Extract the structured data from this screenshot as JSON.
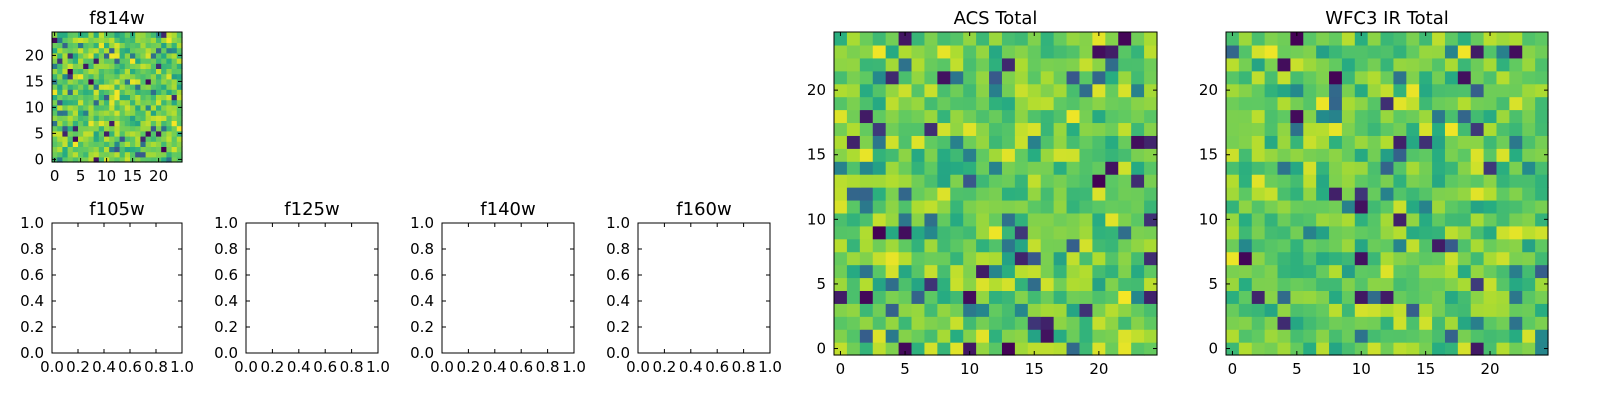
{
  "chart_data": [
    {
      "id": "f814w",
      "type": "heatmap",
      "title": "f814w",
      "nx": 25,
      "ny": 25,
      "xlim": [
        -0.5,
        24.5
      ],
      "ylim": [
        -0.5,
        24.5
      ],
      "xticks": [
        0,
        5,
        10,
        15,
        20
      ],
      "yticks": [
        0,
        5,
        10,
        15,
        20
      ],
      "seed": 11
    },
    {
      "id": "f105w",
      "type": "empty",
      "title": "f105w",
      "xlim": [
        0,
        1
      ],
      "ylim": [
        0,
        1
      ],
      "xticks": [
        0.0,
        0.2,
        0.4,
        0.6,
        0.8,
        1.0
      ],
      "xtick_labels": [
        "0.0",
        "0.2",
        "0.4",
        "0.6",
        "0.8",
        "1.0"
      ],
      "yticks": [
        0.0,
        0.2,
        0.4,
        0.6,
        0.8,
        1.0
      ],
      "ytick_labels": [
        "0.0",
        "0.2",
        "0.4",
        "0.6",
        "0.8",
        "1.0"
      ]
    },
    {
      "id": "f125w",
      "type": "empty",
      "title": "f125w",
      "xlim": [
        0,
        1
      ],
      "ylim": [
        0,
        1
      ],
      "xticks": [
        0.0,
        0.2,
        0.4,
        0.6,
        0.8,
        1.0
      ],
      "xtick_labels": [
        "0.0",
        "0.2",
        "0.4",
        "0.6",
        "0.8",
        "1.0"
      ],
      "yticks": [
        0.0,
        0.2,
        0.4,
        0.6,
        0.8,
        1.0
      ],
      "ytick_labels": [
        "0.0",
        "0.2",
        "0.4",
        "0.6",
        "0.8",
        "1.0"
      ]
    },
    {
      "id": "f140w",
      "type": "empty",
      "title": "f140w",
      "xlim": [
        0,
        1
      ],
      "ylim": [
        0,
        1
      ],
      "xticks": [
        0.0,
        0.2,
        0.4,
        0.6,
        0.8,
        1.0
      ],
      "xtick_labels": [
        "0.0",
        "0.2",
        "0.4",
        "0.6",
        "0.8",
        "1.0"
      ],
      "yticks": [
        0.0,
        0.2,
        0.4,
        0.6,
        0.8,
        1.0
      ],
      "ytick_labels": [
        "0.0",
        "0.2",
        "0.4",
        "0.6",
        "0.8",
        "1.0"
      ]
    },
    {
      "id": "f160w",
      "type": "empty",
      "title": "f160w",
      "xlim": [
        0,
        1
      ],
      "ylim": [
        0,
        1
      ],
      "xticks": [
        0.0,
        0.2,
        0.4,
        0.6,
        0.8,
        1.0
      ],
      "xtick_labels": [
        "0.0",
        "0.2",
        "0.4",
        "0.6",
        "0.8",
        "1.0"
      ],
      "yticks": [
        0.0,
        0.2,
        0.4,
        0.6,
        0.8,
        1.0
      ],
      "ytick_labels": [
        "0.0",
        "0.2",
        "0.4",
        "0.6",
        "0.8",
        "1.0"
      ]
    },
    {
      "id": "acs-total",
      "type": "heatmap",
      "title": "ACS Total",
      "nx": 25,
      "ny": 25,
      "xlim": [
        -0.5,
        24.5
      ],
      "ylim": [
        -0.5,
        24.5
      ],
      "xticks": [
        0,
        5,
        10,
        15,
        20
      ],
      "yticks": [
        0,
        5,
        10,
        15,
        20
      ],
      "seed": 29
    },
    {
      "id": "wfc3-ir-total",
      "type": "heatmap",
      "title": "WFC3 IR Total",
      "nx": 25,
      "ny": 25,
      "xlim": [
        -0.5,
        24.5
      ],
      "ylim": [
        -0.5,
        24.5
      ],
      "xticks": [
        0,
        5,
        10,
        15,
        20
      ],
      "yticks": [
        0,
        5,
        10,
        15,
        20
      ],
      "seed": 47
    }
  ],
  "colormap": [
    "#440154",
    "#3b528b",
    "#21918c",
    "#27ad81",
    "#5ec962",
    "#addc30",
    "#fde725"
  ]
}
